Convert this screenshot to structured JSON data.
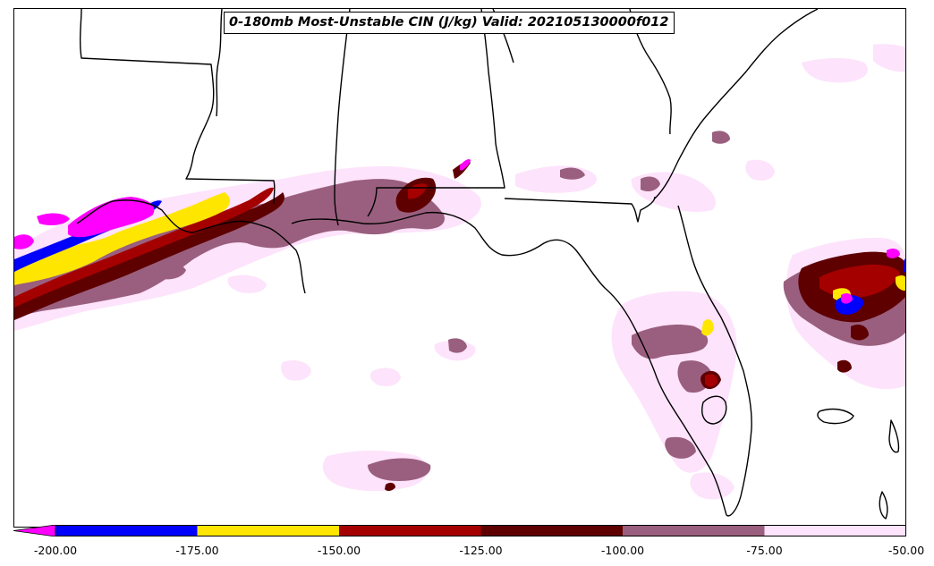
{
  "title": "0-180mb Most-Unstable CIN (J/kg) Valid: 202105130000f012",
  "colorbar": {
    "extend": "min",
    "under_color": "#ff00ff",
    "bins": [
      {
        "from": -200,
        "to": -175,
        "color": "#0000ff"
      },
      {
        "from": -175,
        "to": -150,
        "color": "#ffe600"
      },
      {
        "from": -150,
        "to": -125,
        "color": "#a50000"
      },
      {
        "from": -125,
        "to": -100,
        "color": "#5e0000"
      },
      {
        "from": -100,
        "to": -75,
        "color": "#9a5f7e"
      },
      {
        "from": -75,
        "to": -50,
        "color": "#fde3fb"
      }
    ],
    "tick_labels": [
      "-200.00",
      "-175.00",
      "-150.00",
      "-125.00",
      "-100.00",
      "-75.00",
      "-50.00"
    ]
  }
}
